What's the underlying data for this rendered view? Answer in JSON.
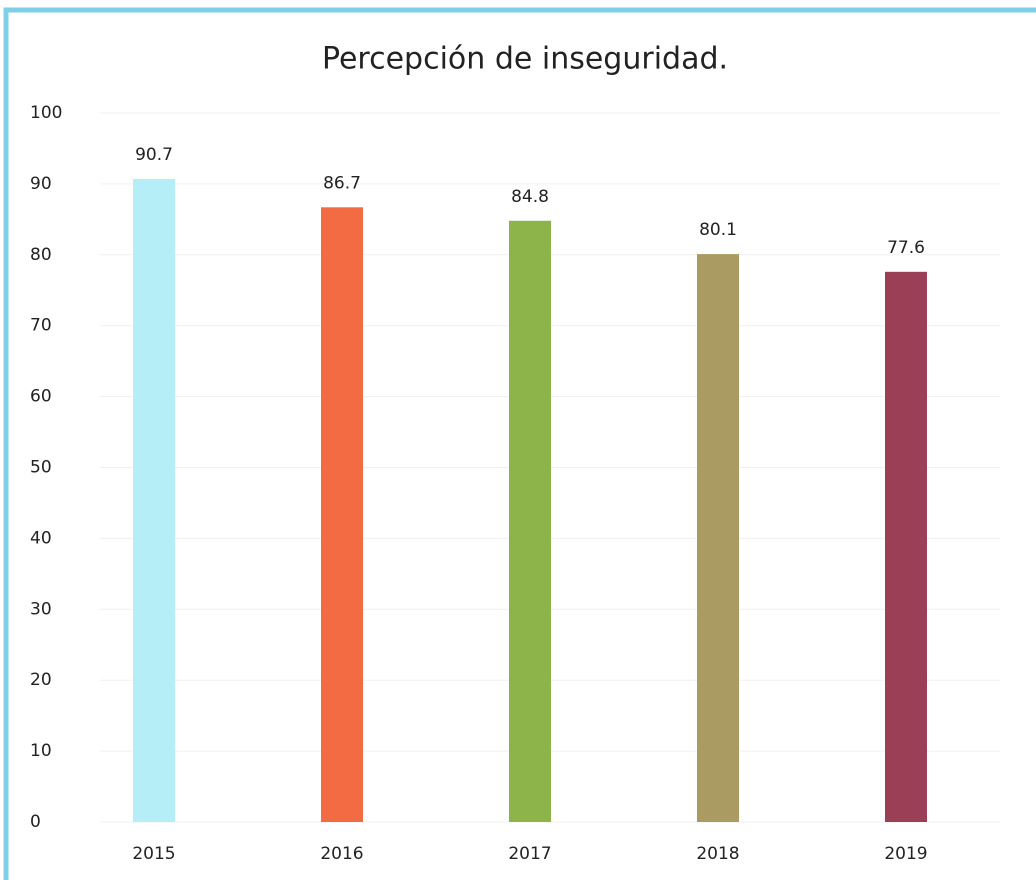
{
  "chart_data": {
    "type": "bar",
    "title": "Percepción de inseguridad.",
    "categories": [
      "2015",
      "2016",
      "2017",
      "2018",
      "2019"
    ],
    "values": [
      90.7,
      86.7,
      84.8,
      80.1,
      77.6
    ],
    "colors": [
      "#b5eef7",
      "#f26b43",
      "#8db44a",
      "#a99b62",
      "#9b3f56"
    ],
    "ylim": [
      0,
      100
    ],
    "yticks": [
      0,
      10,
      20,
      30,
      40,
      50,
      60,
      70,
      80,
      90,
      100
    ],
    "grid": true
  }
}
